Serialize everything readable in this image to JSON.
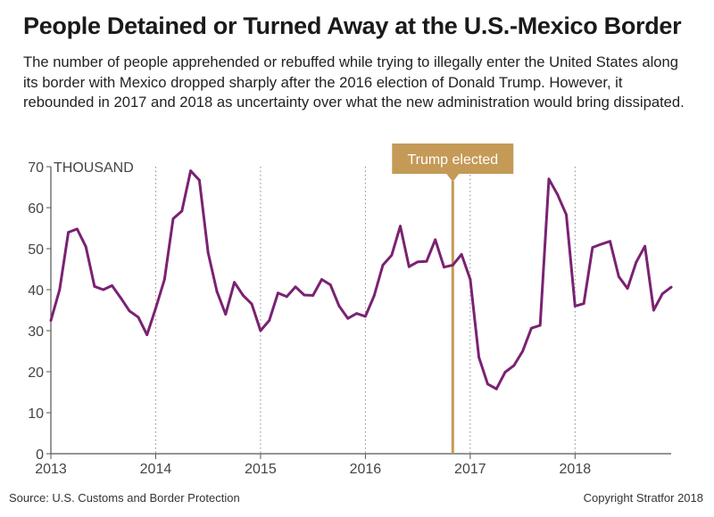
{
  "header": {
    "title": "People Detained or Turned Away at the U.S.-Mexico Border",
    "subtitle": "The number of people apprehended or rebuffed while trying to illegally enter the United States along its border with Mexico dropped sharply after the 2016 election of Donald Trump. However, it rebounded in 2017 and 2018 as uncertainty over what the new administration would bring dissipated."
  },
  "footer": {
    "source": "Source: U.S. Customs and Border Protection",
    "copyright": "Copyright Stratfor 2018"
  },
  "colors": {
    "line": "#7a2272",
    "annotation": "#c49a56",
    "grid": "#888888",
    "axis": "#555555",
    "tick_label": "#444444"
  },
  "chart_data": {
    "type": "line",
    "ylabel": "THOUSAND",
    "ylim": [
      0,
      70
    ],
    "yticks": [
      0,
      10,
      20,
      30,
      40,
      50,
      60,
      70
    ],
    "xlim": [
      "2013-01",
      "2018-12"
    ],
    "xticks": [
      "2013",
      "2014",
      "2015",
      "2016",
      "2017",
      "2018"
    ],
    "grid": "vertical dotted lines at year starts",
    "annotation": {
      "label": "Trump elected",
      "x": "2016-11"
    },
    "x": [
      "2013-01",
      "2013-02",
      "2013-03",
      "2013-04",
      "2013-05",
      "2013-06",
      "2013-07",
      "2013-08",
      "2013-09",
      "2013-10",
      "2013-11",
      "2013-12",
      "2014-01",
      "2014-02",
      "2014-03",
      "2014-04",
      "2014-05",
      "2014-06",
      "2014-07",
      "2014-08",
      "2014-09",
      "2014-10",
      "2014-11",
      "2014-12",
      "2015-01",
      "2015-02",
      "2015-03",
      "2015-04",
      "2015-05",
      "2015-06",
      "2015-07",
      "2015-08",
      "2015-09",
      "2015-10",
      "2015-11",
      "2015-12",
      "2016-01",
      "2016-02",
      "2016-03",
      "2016-04",
      "2016-05",
      "2016-06",
      "2016-07",
      "2016-08",
      "2016-09",
      "2016-10",
      "2016-11",
      "2016-12",
      "2017-01",
      "2017-02",
      "2017-03",
      "2017-04",
      "2017-05",
      "2017-06",
      "2017-07",
      "2017-08",
      "2017-09",
      "2017-10",
      "2017-11",
      "2017-12",
      "2018-01",
      "2018-02",
      "2018-03",
      "2018-04",
      "2018-05",
      "2018-06",
      "2018-07",
      "2018-08",
      "2018-09",
      "2018-10",
      "2018-11",
      "2018-12"
    ],
    "series": [
      {
        "values": [
          32.5,
          40,
          54,
          54.8,
          50.5,
          40.8,
          40,
          41,
          38,
          34.8,
          33.3,
          29,
          35.5,
          42.5,
          57.3,
          59.2,
          69,
          66.7,
          49,
          39.6,
          34,
          41.8,
          38.6,
          36.5,
          30,
          32.5,
          39.2,
          38.3,
          40.7,
          38.7,
          38.6,
          42.5,
          41.2,
          36,
          33,
          34.2,
          33.5,
          38.5,
          46,
          48.4,
          55.5,
          45.6,
          46.8,
          46.9,
          52.2,
          45.5,
          46,
          48.6,
          42.5,
          23.5,
          17,
          15.8,
          19.9,
          21.5,
          25,
          30.6,
          31.3,
          67,
          63.2,
          58.3,
          36,
          36.6,
          50.3,
          51.1,
          51.8,
          43.2,
          40.3,
          46.7,
          50.6,
          35,
          39,
          40.6
        ]
      }
    ]
  }
}
